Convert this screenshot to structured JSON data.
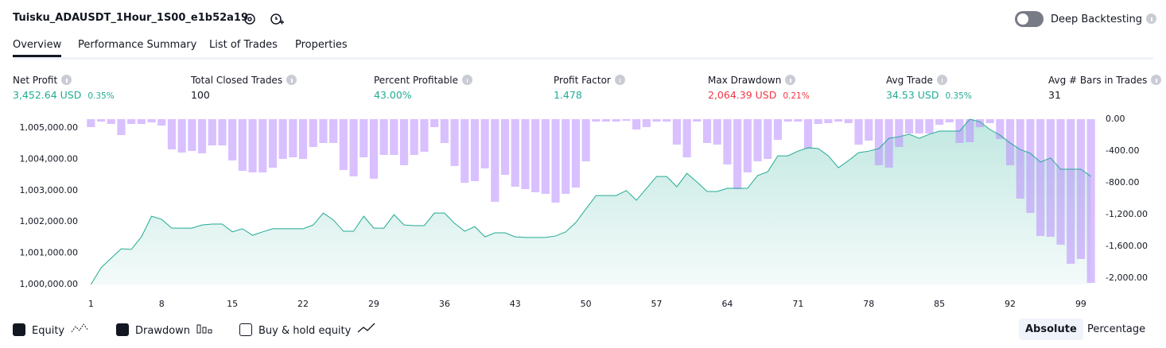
{
  "header": {
    "title": "Tuisku_ADAUSDT_1Hour_1S00_e1b52a19",
    "deep_backtesting": {
      "label": "Deep Backtesting",
      "on": false
    }
  },
  "tabs": {
    "items": [
      "Overview",
      "Performance Summary",
      "List of Trades",
      "Properties"
    ],
    "selected": 0
  },
  "metrics": [
    {
      "label": "Net Profit",
      "value": "3,452.64 USD",
      "percent": "0.35%",
      "color": "#22ab94"
    },
    {
      "label": "Total Closed Trades",
      "value": "100",
      "color": "#131722"
    },
    {
      "label": "Percent Profitable",
      "value": "43.00%",
      "color": "#22ab94"
    },
    {
      "label": "Profit Factor",
      "value": "1.478",
      "color": "#22ab94"
    },
    {
      "label": "Max Drawdown",
      "value": "2,064.39 USD",
      "percent": "0.21%",
      "color": "#f23645"
    },
    {
      "label": "Avg Trade",
      "value": "34.53 USD",
      "percent": "0.35%",
      "color": "#22ab94"
    },
    {
      "label": "Avg # Bars in Trades",
      "value": "31",
      "color": "#131722"
    }
  ],
  "chart_data": {
    "type": "equity_drawdown",
    "x": [
      1,
      2,
      3,
      4,
      5,
      6,
      7,
      8,
      9,
      10,
      11,
      12,
      13,
      14,
      15,
      16,
      17,
      18,
      19,
      20,
      21,
      22,
      23,
      24,
      25,
      26,
      27,
      28,
      29,
      30,
      31,
      32,
      33,
      34,
      35,
      36,
      37,
      38,
      39,
      40,
      41,
      42,
      43,
      44,
      45,
      46,
      47,
      48,
      49,
      50,
      51,
      52,
      53,
      54,
      55,
      56,
      57,
      58,
      59,
      60,
      61,
      62,
      63,
      64,
      65,
      66,
      67,
      68,
      69,
      70,
      71,
      72,
      73,
      74,
      75,
      76,
      77,
      78,
      79,
      80,
      81,
      82,
      83,
      84,
      85,
      86,
      87,
      88,
      89,
      90,
      91,
      92,
      93,
      94,
      95,
      96,
      97,
      98,
      99,
      100
    ],
    "xlim": [
      0.5,
      100.5
    ],
    "xticks": [
      1,
      8,
      15,
      22,
      29,
      36,
      43,
      50,
      57,
      64,
      71,
      78,
      85,
      92,
      99
    ],
    "ylim": [
      1000000,
      1005280
    ],
    "yticks": [
      {
        "value": 1000000,
        "label": "1,000,000.00"
      },
      {
        "value": 1001000,
        "label": "1,001,000.00"
      },
      {
        "value": 1002000,
        "label": "1,002,000.00"
      },
      {
        "value": 1003000,
        "label": "1,003,000.00"
      },
      {
        "value": 1004000,
        "label": "1,004,000.00"
      },
      {
        "value": 1005000,
        "label": "1,005,000.00"
      }
    ],
    "y2lim": [
      -2080,
      0
    ],
    "y2ticks": [
      {
        "value": 0,
        "label": "0.00"
      },
      {
        "value": -400,
        "label": "-400.00"
      },
      {
        "value": -800,
        "label": "-800.00"
      },
      {
        "value": -1200,
        "label": "-1,200.00"
      },
      {
        "value": -1600,
        "label": "-1,600.00"
      },
      {
        "value": -2000,
        "label": "-2,000.00"
      }
    ],
    "series": [
      {
        "name": "Equity",
        "color": "#22ab94",
        "visible": true,
        "values": [
          1000000,
          1000530,
          1000840,
          1001140,
          1001120,
          1001520,
          1002180,
          1002080,
          1001800,
          1001800,
          1001800,
          1001900,
          1001930,
          1001930,
          1001680,
          1001780,
          1001570,
          1001680,
          1001780,
          1001780,
          1001780,
          1001780,
          1001900,
          1002280,
          1002060,
          1001700,
          1001700,
          1002180,
          1001800,
          1001800,
          1002230,
          1001900,
          1001880,
          1001880,
          1002280,
          1002280,
          1001950,
          1001700,
          1001850,
          1001520,
          1001650,
          1001650,
          1001520,
          1001500,
          1001500,
          1001500,
          1001550,
          1001680,
          1001980,
          1002410,
          1002840,
          1002840,
          1002840,
          1003000,
          1002690,
          1003070,
          1003450,
          1003450,
          1003120,
          1003550,
          1003270,
          1002970,
          1002970,
          1003070,
          1003070,
          1003070,
          1003480,
          1003600,
          1004110,
          1004110,
          1004260,
          1004370,
          1004340,
          1004110,
          1003730,
          1003960,
          1004210,
          1004260,
          1004340,
          1004670,
          1004720,
          1004800,
          1004670,
          1004800,
          1004900,
          1004900,
          1004900,
          1005280,
          1005200,
          1004950,
          1004770,
          1004520,
          1004310,
          1004190,
          1003910,
          1004040,
          1003680,
          1003680,
          1003680,
          1003450
        ]
      },
      {
        "name": "Drawdown",
        "color": "#b98cff",
        "visible": true,
        "axis": "y2",
        "values": [
          -100,
          -30,
          -60,
          -200,
          -60,
          -60,
          -40,
          -80,
          -380,
          -420,
          -400,
          -430,
          -330,
          -330,
          -520,
          -650,
          -670,
          -670,
          -610,
          -500,
          -480,
          -500,
          -350,
          -300,
          -300,
          -640,
          -720,
          -480,
          -750,
          -450,
          -450,
          -580,
          -450,
          -410,
          -100,
          -300,
          -590,
          -800,
          -780,
          -620,
          -1040,
          -700,
          -850,
          -880,
          -920,
          -940,
          -1050,
          -940,
          -860,
          -530,
          -30,
          -30,
          -30,
          -20,
          -130,
          -100,
          -30,
          -30,
          -320,
          -480,
          -30,
          -300,
          -320,
          -570,
          -880,
          -670,
          -530,
          -500,
          -260,
          -30,
          -30,
          -370,
          -60,
          -50,
          -30,
          -50,
          -320,
          -270,
          -580,
          -610,
          -350,
          -180,
          -180,
          -180,
          -70,
          -40,
          -300,
          -290,
          -100,
          -50,
          -250,
          -580,
          -1000,
          -1180,
          -1470,
          -1480,
          -1580,
          -1820,
          -1760,
          -2060
        ]
      }
    ]
  },
  "buy_and_hold": {
    "label": "Buy & hold equity",
    "checked": false
  },
  "scale_mode": {
    "options": [
      "Absolute",
      "Percentage"
    ],
    "selected": 0
  }
}
